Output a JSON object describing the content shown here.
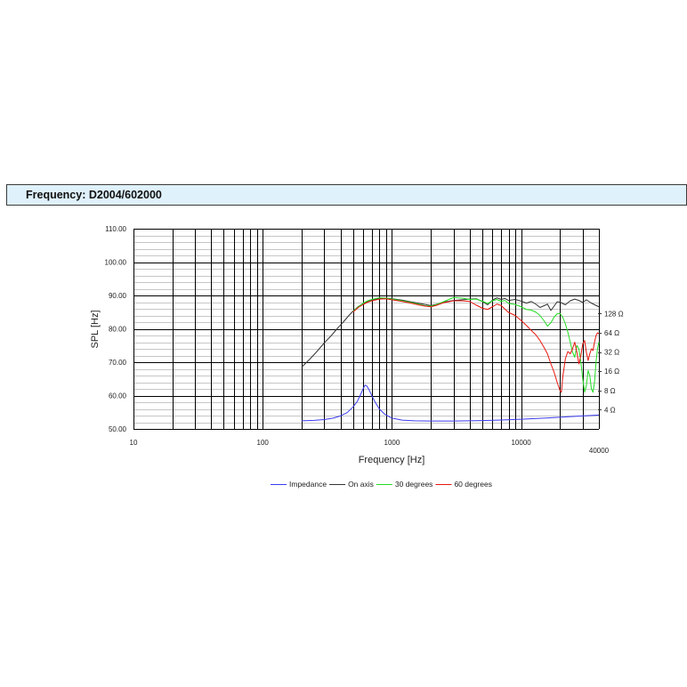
{
  "header": {
    "title": "Frequency: D2004/602000"
  },
  "chart_data": {
    "type": "line",
    "xlabel": "Frequency [Hz]",
    "ylabel": "SPL [Hz]",
    "xscale": "log",
    "xlim": [
      10,
      40000
    ],
    "ylim": [
      50,
      110
    ],
    "y_minor_step": 2,
    "grid": true,
    "x_ticks": [
      {
        "value": 10,
        "label": "10"
      },
      {
        "value": 100,
        "label": "100"
      },
      {
        "value": 1000,
        "label": "1000"
      },
      {
        "value": 10000,
        "label": "10000"
      },
      {
        "value": 40000,
        "label": "40000"
      }
    ],
    "y_ticks": [
      {
        "value": 110,
        "label": "110.00"
      },
      {
        "value": 100,
        "label": "100.00"
      },
      {
        "value": 90,
        "label": "90.00"
      },
      {
        "value": 80,
        "label": "80.00"
      },
      {
        "value": 70,
        "label": "70.00"
      },
      {
        "value": 60,
        "label": "60.00"
      },
      {
        "value": 50,
        "label": "50.00"
      }
    ],
    "y2scale": "log",
    "y2lim": [
      2,
      2740
    ],
    "y2_ticks": [
      {
        "value": 128,
        "label": "128 Ω"
      },
      {
        "value": 64,
        "label": "64 Ω"
      },
      {
        "value": 32,
        "label": "32 Ω"
      },
      {
        "value": 16,
        "label": "16 Ω"
      },
      {
        "value": 8,
        "label": "8 Ω"
      },
      {
        "value": 4,
        "label": "4 Ω"
      }
    ],
    "legend_position": "bottom",
    "series": [
      {
        "name": "Impedance",
        "color": "#3b3bef",
        "axis": "right",
        "points": [
          [
            200,
            2.68
          ],
          [
            250,
            2.72
          ],
          [
            300,
            2.8
          ],
          [
            350,
            2.95
          ],
          [
            400,
            3.2
          ],
          [
            450,
            3.6
          ],
          [
            500,
            4.4
          ],
          [
            540,
            5.4
          ],
          [
            570,
            6.8
          ],
          [
            600,
            8.6
          ],
          [
            620,
            9.7
          ],
          [
            640,
            9.4
          ],
          [
            670,
            8.0
          ],
          [
            700,
            6.6
          ],
          [
            740,
            5.3
          ],
          [
            800,
            4.1
          ],
          [
            880,
            3.4
          ],
          [
            1000,
            2.95
          ],
          [
            1200,
            2.75
          ],
          [
            1500,
            2.68
          ],
          [
            2000,
            2.66
          ],
          [
            3000,
            2.66
          ],
          [
            5000,
            2.7
          ],
          [
            7000,
            2.76
          ],
          [
            10000,
            2.84
          ],
          [
            15000,
            2.95
          ],
          [
            20000,
            3.05
          ],
          [
            30000,
            3.2
          ],
          [
            40000,
            3.3
          ]
        ]
      },
      {
        "name": "On axis",
        "color": "#333333",
        "axis": "left",
        "points": [
          [
            200,
            68.5
          ],
          [
            230,
            70.8
          ],
          [
            260,
            73
          ],
          [
            300,
            75.8
          ],
          [
            340,
            78
          ],
          [
            380,
            80.2
          ],
          [
            420,
            82
          ],
          [
            460,
            83.8
          ],
          [
            500,
            85.3
          ],
          [
            550,
            86.7
          ],
          [
            600,
            87.6
          ],
          [
            650,
            88.2
          ],
          [
            700,
            88.6
          ],
          [
            800,
            89.1
          ],
          [
            900,
            89.2
          ],
          [
            1000,
            89
          ],
          [
            1200,
            88.6
          ],
          [
            1400,
            88.1
          ],
          [
            1600,
            87.7
          ],
          [
            1800,
            87.3
          ],
          [
            2000,
            87
          ],
          [
            2200,
            87.3
          ],
          [
            2500,
            88
          ],
          [
            3000,
            88.5
          ],
          [
            3500,
            88.7
          ],
          [
            4000,
            88.9
          ],
          [
            4500,
            89
          ],
          [
            5000,
            88.2
          ],
          [
            5500,
            87.2
          ],
          [
            6000,
            88.6
          ],
          [
            6500,
            89.3
          ],
          [
            7000,
            88.8
          ],
          [
            7500,
            89.1
          ],
          [
            8000,
            88.5
          ],
          [
            9000,
            88.8
          ],
          [
            10000,
            88.3
          ],
          [
            11000,
            87.7
          ],
          [
            12000,
            88.2
          ],
          [
            13000,
            87.4
          ],
          [
            14000,
            86.4
          ],
          [
            15000,
            86.9
          ],
          [
            16000,
            87.4
          ],
          [
            17000,
            85.5
          ],
          [
            18000,
            86.8
          ],
          [
            19000,
            88.1
          ],
          [
            20000,
            88
          ],
          [
            22000,
            87.2
          ],
          [
            24000,
            88.4
          ],
          [
            26000,
            88.9
          ],
          [
            28000,
            88.5
          ],
          [
            30000,
            87.9
          ],
          [
            32000,
            88.7
          ],
          [
            35000,
            87.7
          ],
          [
            38000,
            87
          ],
          [
            40000,
            86.6
          ]
        ]
      },
      {
        "name": "30 degrees",
        "color": "#22dd22",
        "axis": "left",
        "points": [
          [
            500,
            85.2
          ],
          [
            550,
            86.6
          ],
          [
            600,
            87.7
          ],
          [
            650,
            88.4
          ],
          [
            700,
            88.8
          ],
          [
            800,
            89.3
          ],
          [
            900,
            89.2
          ],
          [
            1000,
            88.9
          ],
          [
            1200,
            88.4
          ],
          [
            1400,
            87.9
          ],
          [
            1600,
            87.4
          ],
          [
            1800,
            86.9
          ],
          [
            2000,
            86.8
          ],
          [
            2200,
            87.2
          ],
          [
            2500,
            88.1
          ],
          [
            3000,
            89.4
          ],
          [
            3500,
            89.2
          ],
          [
            4000,
            88.8
          ],
          [
            4500,
            88.9
          ],
          [
            5000,
            88.3
          ],
          [
            5500,
            87.6
          ],
          [
            6000,
            88.4
          ],
          [
            6500,
            88.8
          ],
          [
            7000,
            88.2
          ],
          [
            7500,
            88.5
          ],
          [
            8000,
            87.6
          ],
          [
            9000,
            87.3
          ],
          [
            10000,
            86.6
          ],
          [
            11000,
            85.8
          ],
          [
            12000,
            85.6
          ],
          [
            13000,
            85
          ],
          [
            14000,
            84
          ],
          [
            15000,
            82.5
          ],
          [
            16000,
            80.8
          ],
          [
            17000,
            81.8
          ],
          [
            18000,
            83.5
          ],
          [
            19000,
            84.5
          ],
          [
            20000,
            84.6
          ],
          [
            21000,
            83.5
          ],
          [
            22000,
            81.5
          ],
          [
            23000,
            79
          ],
          [
            24000,
            76
          ],
          [
            25000,
            73
          ],
          [
            26000,
            71.5
          ],
          [
            27000,
            75
          ],
          [
            28000,
            74
          ],
          [
            29000,
            70
          ],
          [
            30000,
            65
          ],
          [
            31000,
            61
          ],
          [
            32000,
            63
          ],
          [
            33000,
            67.5
          ],
          [
            34000,
            66
          ],
          [
            35000,
            62
          ],
          [
            36000,
            61
          ],
          [
            37000,
            64
          ],
          [
            38000,
            70
          ],
          [
            39000,
            74
          ],
          [
            40000,
            76
          ]
        ]
      },
      {
        "name": "60 degrees",
        "color": "#e8160f",
        "axis": "left",
        "points": [
          [
            500,
            85
          ],
          [
            550,
            86.4
          ],
          [
            600,
            87.3
          ],
          [
            650,
            88
          ],
          [
            700,
            88.4
          ],
          [
            800,
            88.9
          ],
          [
            900,
            89
          ],
          [
            1000,
            88.7
          ],
          [
            1200,
            88.2
          ],
          [
            1400,
            87.7
          ],
          [
            1600,
            87.2
          ],
          [
            1800,
            86.8
          ],
          [
            2000,
            86.6
          ],
          [
            2200,
            87
          ],
          [
            2500,
            87.8
          ],
          [
            3000,
            88.4
          ],
          [
            3500,
            88.4
          ],
          [
            4000,
            88.2
          ],
          [
            4500,
            87.1
          ],
          [
            5000,
            86.2
          ],
          [
            5500,
            85.8
          ],
          [
            6000,
            86.6
          ],
          [
            6500,
            87.4
          ],
          [
            7000,
            87
          ],
          [
            7500,
            85.9
          ],
          [
            8000,
            84.9
          ],
          [
            9000,
            84
          ],
          [
            10000,
            82.5
          ],
          [
            11000,
            81
          ],
          [
            12000,
            79.5
          ],
          [
            13000,
            78.2
          ],
          [
            14000,
            76.5
          ],
          [
            15000,
            74.5
          ],
          [
            16000,
            72.5
          ],
          [
            17000,
            69.5
          ],
          [
            18000,
            67
          ],
          [
            19000,
            64
          ],
          [
            20000,
            61.5
          ],
          [
            20500,
            61
          ],
          [
            21000,
            65.5
          ],
          [
            22000,
            71
          ],
          [
            23000,
            73.2
          ],
          [
            24000,
            72.5
          ],
          [
            25000,
            74
          ],
          [
            26000,
            76
          ],
          [
            27000,
            73
          ],
          [
            28000,
            69.5
          ],
          [
            29000,
            72
          ],
          [
            30000,
            75.5
          ],
          [
            31000,
            76.5
          ],
          [
            32000,
            73
          ],
          [
            33000,
            70.5
          ],
          [
            34000,
            72.5
          ],
          [
            35000,
            74
          ],
          [
            36000,
            73.5
          ],
          [
            37000,
            76
          ],
          [
            38000,
            78
          ],
          [
            39000,
            78.8
          ],
          [
            40000,
            78.5
          ]
        ]
      }
    ]
  }
}
